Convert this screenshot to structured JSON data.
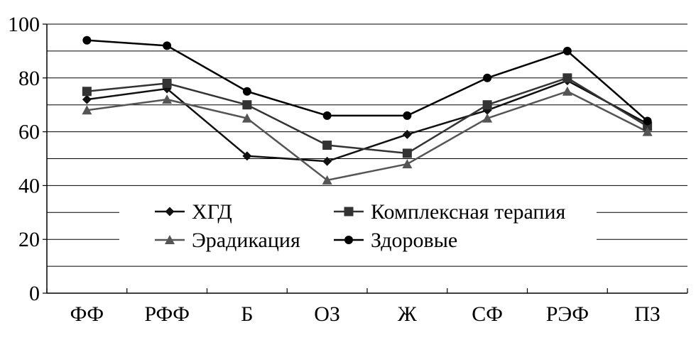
{
  "chart_data": {
    "type": "line",
    "title": "",
    "xlabel": "",
    "ylabel": "",
    "categories": [
      "ФФ",
      "РФФ",
      "Б",
      "ОЗ",
      "Ж",
      "СФ",
      "РЭФ",
      "ПЗ"
    ],
    "ylim": [
      0,
      100
    ],
    "yticks": [
      0,
      20,
      40,
      60,
      80,
      100
    ],
    "grid": "horizontal",
    "legend_position": "bottom-center",
    "series": [
      {
        "name": "ХГД",
        "marker": "diamond",
        "color": "#111111",
        "values": [
          72,
          76,
          51,
          49,
          59,
          68,
          79,
          63
        ]
      },
      {
        "name": "Комплексная терапия",
        "marker": "square",
        "color": "#333333",
        "values": [
          75,
          78,
          70,
          55,
          52,
          70,
          80,
          62
        ]
      },
      {
        "name": "Эрадикация",
        "marker": "triangle",
        "color": "#555555",
        "values": [
          68,
          72,
          65,
          42,
          48,
          65,
          75,
          60
        ]
      },
      {
        "name": "Здоровые",
        "marker": "circle",
        "color": "#000000",
        "values": [
          94,
          92,
          75,
          66,
          66,
          80,
          90,
          64
        ]
      }
    ],
    "legend_order": [
      "ХГД",
      "Комплексная терапия",
      "Эрадикация",
      "Здоровые"
    ]
  }
}
